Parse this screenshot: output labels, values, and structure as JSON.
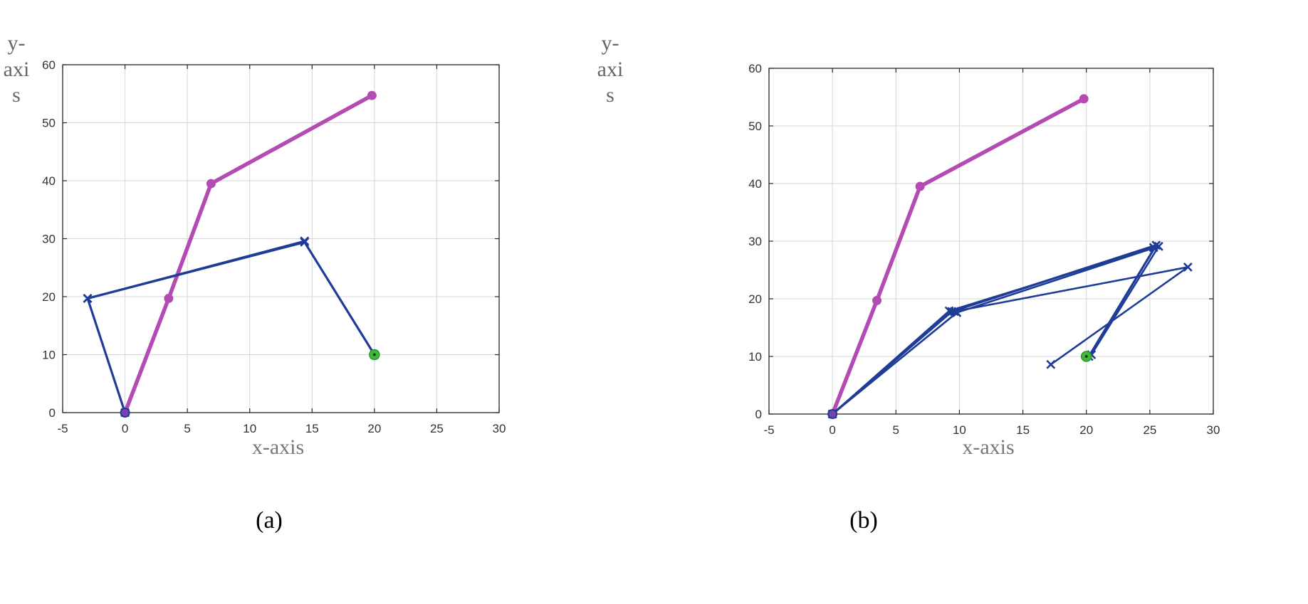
{
  "colors": {
    "arm_a": "#b44bb3",
    "arm_b": "#1f3c96",
    "target": "#3cba3c"
  },
  "chart_data": [
    {
      "type": "line",
      "panel_label": "(a)",
      "xlabel": "x-axis",
      "ylabel_lines": [
        "y-",
        "axi",
        "s"
      ],
      "xlim": [
        -5,
        30
      ],
      "ylim": [
        0,
        60
      ],
      "x_ticks": [
        -5,
        0,
        5,
        10,
        15,
        20,
        25,
        30
      ],
      "y_ticks": [
        0,
        10,
        20,
        30,
        40,
        50,
        60
      ],
      "grid": true,
      "series": [
        {
          "color": "#b44bb3",
          "marker": "o",
          "lines": [
            [
              [
                0,
                0
              ],
              [
                3.5,
                19.7
              ],
              [
                6.9,
                39.5
              ],
              [
                19.8,
                54.7
              ]
            ]
          ]
        },
        {
          "color": "#1f3c96",
          "marker": "x",
          "lines": [
            [
              [
                0,
                0
              ],
              [
                -3,
                19.7
              ],
              [
                14.4,
                29.4
              ],
              [
                20,
                10
              ]
            ],
            [
              [
                -3,
                19.7
              ],
              [
                14.4,
                29.6
              ]
            ]
          ]
        }
      ],
      "target": [
        20,
        10
      ]
    },
    {
      "type": "line",
      "panel_label": "(b)",
      "xlabel": "x-axis",
      "ylabel_lines": [
        "y-",
        "axi",
        "s"
      ],
      "xlim": [
        -5,
        30
      ],
      "ylim": [
        0,
        60
      ],
      "x_ticks": [
        -5,
        0,
        5,
        10,
        15,
        20,
        25,
        30
      ],
      "y_ticks": [
        0,
        10,
        20,
        30,
        40,
        50,
        60
      ],
      "grid": true,
      "series": [
        {
          "color": "#b44bb3",
          "marker": "o",
          "lines": [
            [
              [
                0,
                0
              ],
              [
                3.5,
                19.7
              ],
              [
                6.9,
                39.5
              ],
              [
                19.8,
                54.7
              ]
            ]
          ]
        },
        {
          "color": "#1f3c96",
          "marker": "x",
          "lines": [
            [
              [
                0,
                0
              ],
              [
                9.4,
                17.8
              ],
              [
                25.5,
                29.3
              ],
              [
                20.2,
                10
              ]
            ],
            [
              [
                0,
                0
              ],
              [
                9.8,
                17.6
              ],
              [
                25.7,
                29.1
              ],
              [
                20.4,
                10.3
              ]
            ],
            [
              [
                0,
                0
              ],
              [
                9.2,
                17.9
              ],
              [
                25.3,
                28.9
              ]
            ],
            [
              [
                9.6,
                17.8
              ],
              [
                28,
                25.5
              ],
              [
                17.2,
                8.6
              ]
            ]
          ]
        }
      ],
      "target": [
        20,
        10
      ]
    }
  ]
}
